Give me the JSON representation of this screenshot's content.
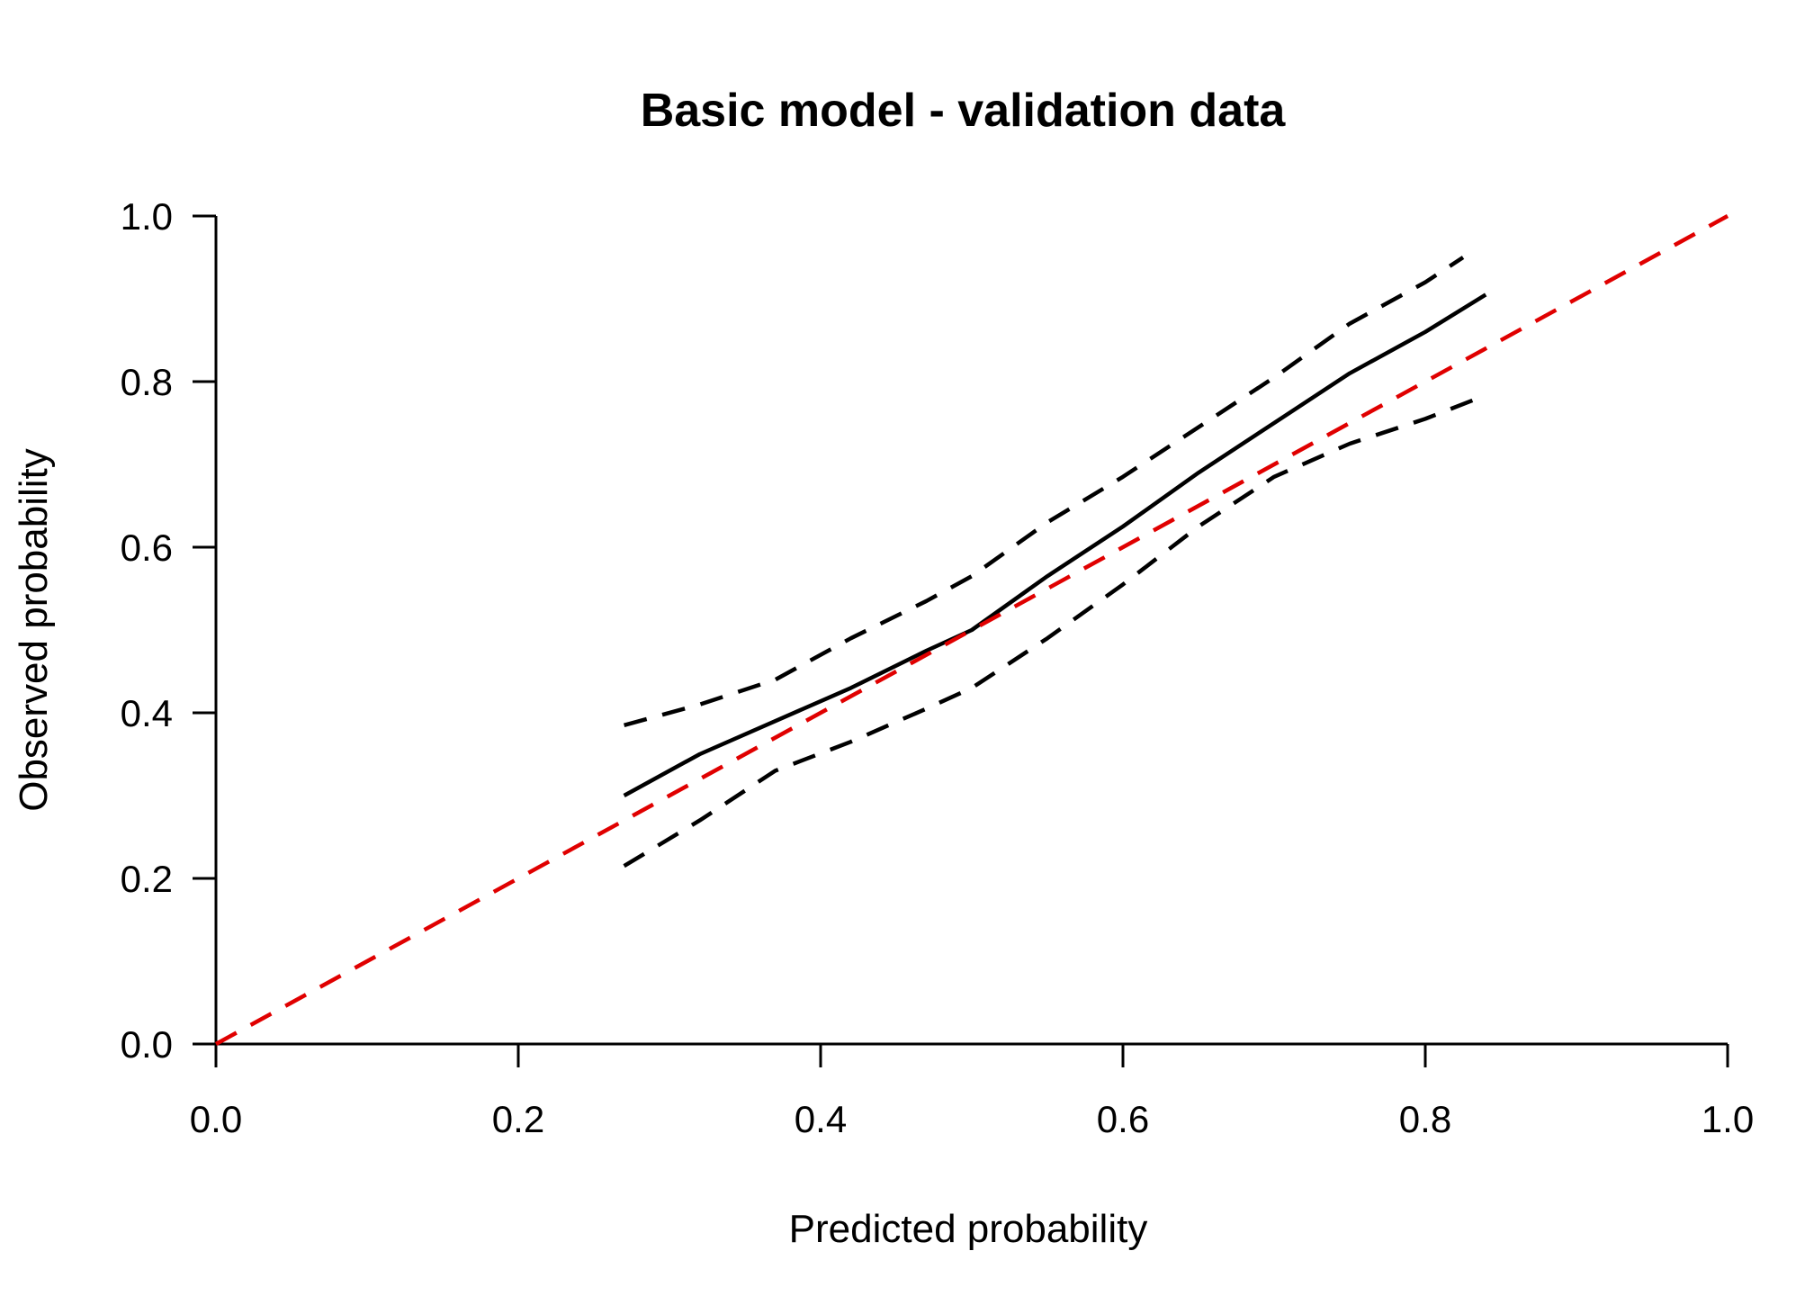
{
  "chart_data": {
    "type": "line",
    "title": "Basic model - validation data",
    "xlabel": "Predicted probability",
    "ylabel": "Observed probability",
    "xlim": [
      0.0,
      1.0
    ],
    "ylim": [
      0.0,
      1.0
    ],
    "xticks": [
      "0.0",
      "0.2",
      "0.4",
      "0.6",
      "0.8",
      "1.0"
    ],
    "yticks": [
      "0.0",
      "0.2",
      "0.4",
      "0.6",
      "0.8",
      "1.0"
    ],
    "grid": false,
    "legend": "none",
    "colors": {
      "calibration": "#000000",
      "reference": "#e00000"
    },
    "series": [
      {
        "style": "solid",
        "color": "#000000",
        "x": [
          0.27,
          0.32,
          0.37,
          0.42,
          0.47,
          0.5,
          0.55,
          0.6,
          0.65,
          0.7,
          0.75,
          0.8,
          0.84
        ],
        "y": [
          0.3,
          0.35,
          0.39,
          0.43,
          0.475,
          0.5,
          0.565,
          0.625,
          0.69,
          0.75,
          0.81,
          0.86,
          0.905
        ]
      },
      {
        "style": "dashed",
        "color": "#000000",
        "x": [
          0.27,
          0.32,
          0.37,
          0.42,
          0.47,
          0.5,
          0.55,
          0.6,
          0.65,
          0.7,
          0.75,
          0.8,
          0.825
        ],
        "y": [
          0.385,
          0.41,
          0.44,
          0.49,
          0.535,
          0.565,
          0.63,
          0.685,
          0.745,
          0.805,
          0.87,
          0.92,
          0.95
        ]
      },
      {
        "style": "dashed",
        "color": "#000000",
        "x": [
          0.27,
          0.32,
          0.37,
          0.42,
          0.47,
          0.5,
          0.55,
          0.6,
          0.65,
          0.7,
          0.75,
          0.8,
          0.835
        ],
        "y": [
          0.215,
          0.27,
          0.33,
          0.365,
          0.405,
          0.43,
          0.49,
          0.555,
          0.625,
          0.685,
          0.725,
          0.755,
          0.78
        ]
      },
      {
        "style": "dashed",
        "color": "#e00000",
        "x": [
          0.0,
          1.0
        ],
        "y": [
          0.0,
          1.0
        ]
      }
    ]
  }
}
